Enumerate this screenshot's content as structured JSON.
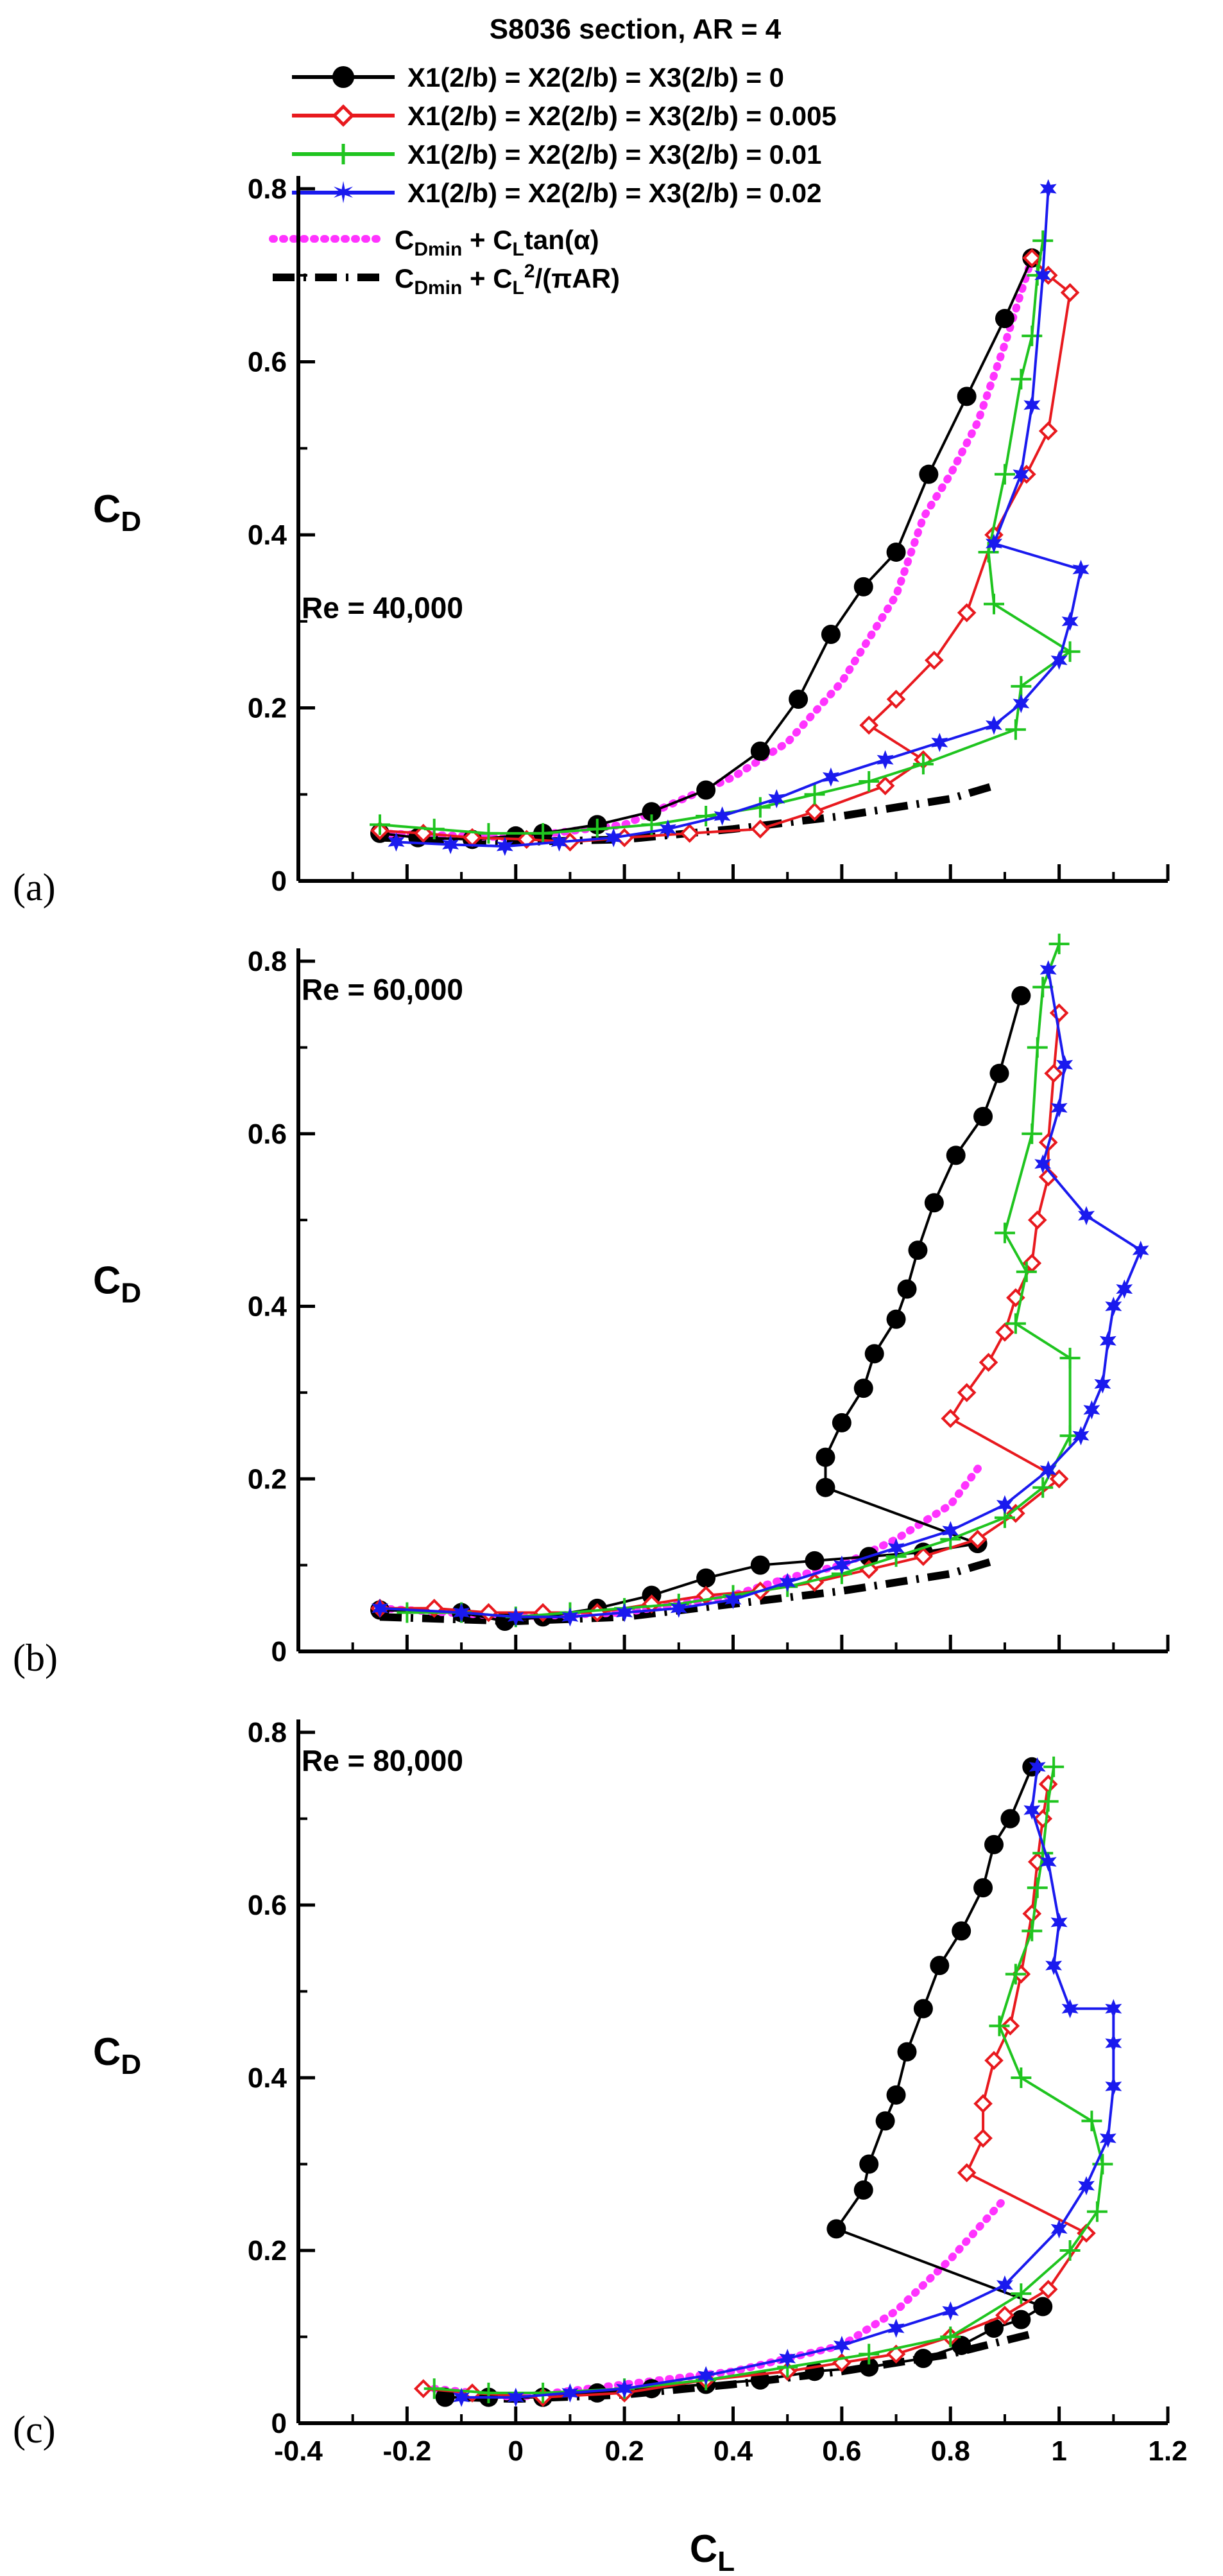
{
  "chart_data": {
    "type": "line",
    "title": "S8036 section, AR = 4",
    "xlabel": "CL",
    "ylabel": "CD",
    "xlim": [
      -0.4,
      1.2
    ],
    "ylim": [
      0,
      0.8
    ],
    "x_ticks": [
      "-0.4",
      "-0.2",
      "0",
      "0.2",
      "0.4",
      "0.6",
      "0.8",
      "1",
      "1.2"
    ],
    "y_ticks": [
      "0",
      "0.2",
      "0.4",
      "0.6",
      "0.8"
    ],
    "legend": [
      {
        "series": "s0",
        "label": "X1(2/b) = X2(2/b) = X3(2/b) = 0"
      },
      {
        "series": "s1",
        "label": "X1(2/b) = X2(2/b) = X3(2/b) = 0.005"
      },
      {
        "series": "s2",
        "label": "X1(2/b) = X2(2/b) = X3(2/b) = 0.01"
      },
      {
        "series": "s3",
        "label": "X1(2/b) = X2(2/b) = X3(2/b) = 0.02"
      },
      {
        "series": "tan",
        "label": "CDmin + CLtan(α)"
      },
      {
        "series": "ind",
        "label": "CDmin + CL2/(πAR)"
      }
    ],
    "panels": [
      {
        "label": "(a)",
        "re_label": "Re = 40,000",
        "series": [
          {
            "id": "s0",
            "color": "#000000",
            "marker": "circle",
            "x": [
              -0.25,
              -0.18,
              -0.08,
              0.0,
              0.05,
              0.15,
              0.25,
              0.35,
              0.45,
              0.52,
              0.58,
              0.64,
              0.7,
              0.76,
              0.83,
              0.9,
              0.95
            ],
            "y": [
              0.055,
              0.05,
              0.048,
              0.052,
              0.055,
              0.065,
              0.08,
              0.105,
              0.15,
              0.21,
              0.285,
              0.34,
              0.38,
              0.47,
              0.56,
              0.65,
              0.72
            ]
          },
          {
            "id": "s1",
            "color": "#e8191e",
            "marker": "diamond",
            "x": [
              -0.25,
              -0.17,
              -0.08,
              0.02,
              0.1,
              0.2,
              0.32,
              0.45,
              0.55,
              0.68,
              0.75,
              0.65,
              0.7,
              0.77,
              0.83,
              0.88,
              0.94,
              0.98,
              1.02,
              0.98,
              0.95
            ],
            "y": [
              0.058,
              0.055,
              0.05,
              0.048,
              0.045,
              0.05,
              0.055,
              0.06,
              0.08,
              0.11,
              0.14,
              0.18,
              0.21,
              0.255,
              0.31,
              0.4,
              0.47,
              0.52,
              0.68,
              0.7,
              0.72
            ]
          },
          {
            "id": "s2",
            "color": "#1fc41f",
            "marker": "plus",
            "x": [
              -0.25,
              -0.15,
              -0.05,
              0.05,
              0.15,
              0.25,
              0.35,
              0.45,
              0.55,
              0.65,
              0.75,
              0.92,
              0.93,
              1.02,
              0.88,
              0.87,
              0.9,
              0.93,
              0.95,
              0.96,
              0.97
            ],
            "y": [
              0.065,
              0.06,
              0.055,
              0.055,
              0.06,
              0.065,
              0.075,
              0.085,
              0.1,
              0.115,
              0.135,
              0.175,
              0.225,
              0.265,
              0.32,
              0.38,
              0.47,
              0.58,
              0.63,
              0.7,
              0.74
            ]
          },
          {
            "id": "s3",
            "color": "#1a1aee",
            "marker": "star",
            "x": [
              -0.22,
              -0.12,
              -0.02,
              0.08,
              0.18,
              0.28,
              0.38,
              0.48,
              0.58,
              0.68,
              0.78,
              0.88,
              0.93,
              1.0,
              1.02,
              1.04,
              0.88,
              0.93,
              0.95,
              0.97,
              0.98
            ],
            "y": [
              0.045,
              0.042,
              0.04,
              0.045,
              0.05,
              0.06,
              0.075,
              0.095,
              0.12,
              0.14,
              0.16,
              0.18,
              0.205,
              0.255,
              0.3,
              0.36,
              0.39,
              0.47,
              0.55,
              0.7,
              0.8
            ]
          }
        ],
        "cdmin_tan": {
          "x": [
            -0.25,
            0.0,
            0.2,
            0.4,
            0.5,
            0.6,
            0.7,
            0.75,
            0.8,
            0.85,
            0.9,
            0.95
          ],
          "y": [
            0.055,
            0.05,
            0.065,
            0.12,
            0.16,
            0.23,
            0.33,
            0.42,
            0.47,
            0.53,
            0.62,
            0.72
          ]
        },
        "cdmin_ind": {
          "x": [
            -0.25,
            0.0,
            0.2,
            0.4,
            0.6,
            0.8,
            0.88
          ],
          "y": [
            0.05,
            0.045,
            0.048,
            0.06,
            0.075,
            0.095,
            0.11
          ]
        }
      },
      {
        "label": "(b)",
        "re_label": "Re = 60,000",
        "series": [
          {
            "id": "s0",
            "color": "#000000",
            "marker": "circle",
            "x": [
              -0.25,
              -0.1,
              -0.02,
              0.05,
              0.15,
              0.25,
              0.35,
              0.45,
              0.55,
              0.65,
              0.75,
              0.85,
              0.57,
              0.57,
              0.6,
              0.64,
              0.66,
              0.7,
              0.72,
              0.74,
              0.77,
              0.81,
              0.86,
              0.89,
              0.93
            ],
            "y": [
              0.048,
              0.045,
              0.035,
              0.04,
              0.05,
              0.065,
              0.085,
              0.1,
              0.105,
              0.11,
              0.115,
              0.125,
              0.19,
              0.225,
              0.265,
              0.305,
              0.345,
              0.385,
              0.42,
              0.465,
              0.52,
              0.575,
              0.62,
              0.67,
              0.76
            ]
          },
          {
            "id": "s1",
            "color": "#e8191e",
            "marker": "diamond",
            "x": [
              -0.25,
              -0.15,
              -0.05,
              0.05,
              0.15,
              0.25,
              0.35,
              0.45,
              0.55,
              0.65,
              0.75,
              0.85,
              0.92,
              1.0,
              0.8,
              0.83,
              0.87,
              0.9,
              0.92,
              0.95,
              0.96,
              0.98,
              0.98,
              0.99,
              1.0
            ],
            "y": [
              0.05,
              0.05,
              0.045,
              0.045,
              0.045,
              0.055,
              0.065,
              0.07,
              0.08,
              0.095,
              0.11,
              0.13,
              0.16,
              0.2,
              0.27,
              0.3,
              0.335,
              0.37,
              0.41,
              0.45,
              0.5,
              0.55,
              0.59,
              0.67,
              0.74
            ]
          },
          {
            "id": "s2",
            "color": "#1fc41f",
            "marker": "plus",
            "x": [
              -0.2,
              -0.1,
              0.0,
              0.1,
              0.2,
              0.3,
              0.4,
              0.5,
              0.6,
              0.7,
              0.8,
              0.9,
              0.97,
              1.02,
              1.02,
              0.92,
              0.94,
              0.9,
              0.95,
              0.96,
              0.97,
              1.0
            ],
            "y": [
              0.045,
              0.045,
              0.04,
              0.045,
              0.05,
              0.055,
              0.065,
              0.075,
              0.09,
              0.11,
              0.13,
              0.155,
              0.19,
              0.25,
              0.34,
              0.38,
              0.44,
              0.485,
              0.6,
              0.7,
              0.77,
              0.82
            ]
          },
          {
            "id": "s3",
            "color": "#1a1aee",
            "marker": "star",
            "x": [
              -0.25,
              -0.1,
              0.0,
              0.1,
              0.2,
              0.3,
              0.4,
              0.5,
              0.6,
              0.7,
              0.8,
              0.9,
              0.98,
              1.04,
              1.06,
              1.08,
              1.09,
              1.1,
              1.12,
              1.15,
              1.05,
              0.97,
              1.0,
              1.01,
              0.98
            ],
            "y": [
              0.05,
              0.045,
              0.04,
              0.04,
              0.045,
              0.05,
              0.06,
              0.08,
              0.1,
              0.12,
              0.14,
              0.17,
              0.21,
              0.25,
              0.28,
              0.31,
              0.36,
              0.4,
              0.42,
              0.465,
              0.505,
              0.565,
              0.63,
              0.68,
              0.79
            ]
          }
        ],
        "cdmin_tan": {
          "x": [
            -0.25,
            0.0,
            0.2,
            0.4,
            0.5,
            0.6,
            0.7,
            0.8,
            0.86
          ],
          "y": [
            0.05,
            0.04,
            0.045,
            0.065,
            0.085,
            0.1,
            0.13,
            0.17,
            0.22
          ]
        },
        "cdmin_ind": {
          "x": [
            -0.25,
            0.0,
            0.2,
            0.4,
            0.6,
            0.8,
            0.88
          ],
          "y": [
            0.04,
            0.035,
            0.04,
            0.055,
            0.07,
            0.09,
            0.105
          ]
        }
      },
      {
        "label": "(c)",
        "re_label": "Re = 80,000",
        "series": [
          {
            "id": "s0",
            "color": "#000000",
            "marker": "circle",
            "x": [
              -0.13,
              -0.05,
              0.05,
              0.15,
              0.25,
              0.35,
              0.45,
              0.55,
              0.65,
              0.75,
              0.82,
              0.88,
              0.93,
              0.97,
              0.59,
              0.64,
              0.65,
              0.68,
              0.7,
              0.72,
              0.75,
              0.78,
              0.82,
              0.86,
              0.88,
              0.91,
              0.95
            ],
            "y": [
              0.03,
              0.03,
              0.03,
              0.035,
              0.04,
              0.045,
              0.05,
              0.06,
              0.065,
              0.075,
              0.09,
              0.11,
              0.12,
              0.135,
              0.225,
              0.27,
              0.3,
              0.35,
              0.38,
              0.43,
              0.48,
              0.53,
              0.57,
              0.62,
              0.67,
              0.7,
              0.76
            ]
          },
          {
            "id": "s1",
            "color": "#e8191e",
            "marker": "diamond",
            "x": [
              -0.17,
              -0.08,
              0.05,
              0.2,
              0.35,
              0.5,
              0.6,
              0.7,
              0.8,
              0.9,
              0.98,
              1.05,
              0.83,
              0.86,
              0.86,
              0.88,
              0.91,
              0.93,
              0.95,
              0.96,
              0.97,
              0.98
            ],
            "y": [
              0.04,
              0.035,
              0.03,
              0.035,
              0.05,
              0.06,
              0.07,
              0.08,
              0.1,
              0.125,
              0.155,
              0.22,
              0.29,
              0.33,
              0.37,
              0.42,
              0.46,
              0.52,
              0.59,
              0.65,
              0.7,
              0.74
            ]
          },
          {
            "id": "s2",
            "color": "#1fc41f",
            "marker": "plus",
            "x": [
              -0.15,
              -0.05,
              0.05,
              0.2,
              0.35,
              0.5,
              0.65,
              0.8,
              0.93,
              1.02,
              1.07,
              1.08,
              1.06,
              0.93,
              0.89,
              0.92,
              0.95,
              0.96,
              0.97,
              0.98,
              0.99
            ],
            "y": [
              0.04,
              0.035,
              0.035,
              0.04,
              0.05,
              0.065,
              0.08,
              0.1,
              0.15,
              0.2,
              0.245,
              0.3,
              0.35,
              0.4,
              0.46,
              0.52,
              0.57,
              0.62,
              0.66,
              0.72,
              0.76
            ]
          },
          {
            "id": "s3",
            "color": "#1a1aee",
            "marker": "star",
            "x": [
              -0.1,
              0.0,
              0.1,
              0.2,
              0.35,
              0.5,
              0.6,
              0.7,
              0.8,
              0.9,
              1.0,
              1.05,
              1.09,
              1.1,
              1.1,
              1.1,
              1.02,
              0.99,
              1.0,
              0.98,
              0.95,
              0.96
            ],
            "y": [
              0.03,
              0.03,
              0.035,
              0.04,
              0.055,
              0.075,
              0.09,
              0.11,
              0.13,
              0.16,
              0.225,
              0.275,
              0.33,
              0.39,
              0.44,
              0.48,
              0.48,
              0.53,
              0.58,
              0.65,
              0.71,
              0.76
            ]
          }
        ],
        "cdmin_tan": {
          "x": [
            -0.15,
            0.0,
            0.2,
            0.4,
            0.6,
            0.7,
            0.8,
            0.9
          ],
          "y": [
            0.04,
            0.03,
            0.045,
            0.06,
            0.09,
            0.13,
            0.19,
            0.26
          ]
        },
        "cdmin_ind": {
          "x": [
            -0.1,
            0.0,
            0.2,
            0.4,
            0.6,
            0.8,
            0.96
          ],
          "y": [
            0.03,
            0.028,
            0.033,
            0.045,
            0.06,
            0.08,
            0.105
          ]
        }
      }
    ]
  }
}
